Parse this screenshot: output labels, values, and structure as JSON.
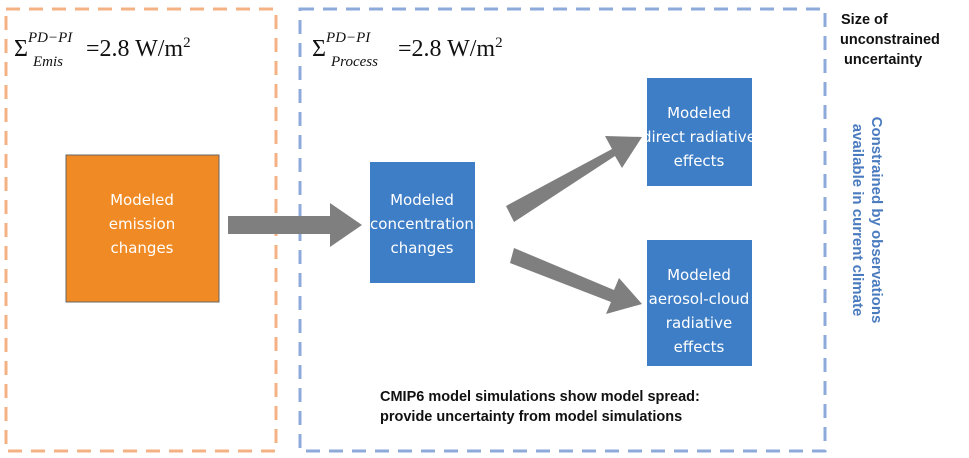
{
  "left_panel": {
    "formula": {
      "symbol": "Σ",
      "sup": "PD−PI",
      "sub": "Emis",
      "rest": "=2.8 W/m",
      "exp": "2"
    },
    "box": [
      "Modeled",
      "emission",
      "changes"
    ]
  },
  "right_panel": {
    "formula": {
      "symbol": "Σ",
      "sup": "PD−PI",
      "sub": "Process",
      "rest": "=2.8 W/m",
      "exp": "2"
    },
    "concentration_box": [
      "Modeled",
      "concentration",
      "changes"
    ],
    "direct_box": [
      "Modeled",
      "direct radiative",
      "effects"
    ],
    "aerosol_box": [
      "Modeled",
      "aerosol-cloud",
      "radiative",
      "effects"
    ],
    "note": [
      "CMIP6 model simulations show model spread:",
      "provide uncertainty from model simulations"
    ]
  },
  "side_label": [
    "Size of",
    "unconstrained",
    " uncertainty"
  ],
  "vertical_label": [
    "Constrained by observations",
    "available in current climate"
  ]
}
